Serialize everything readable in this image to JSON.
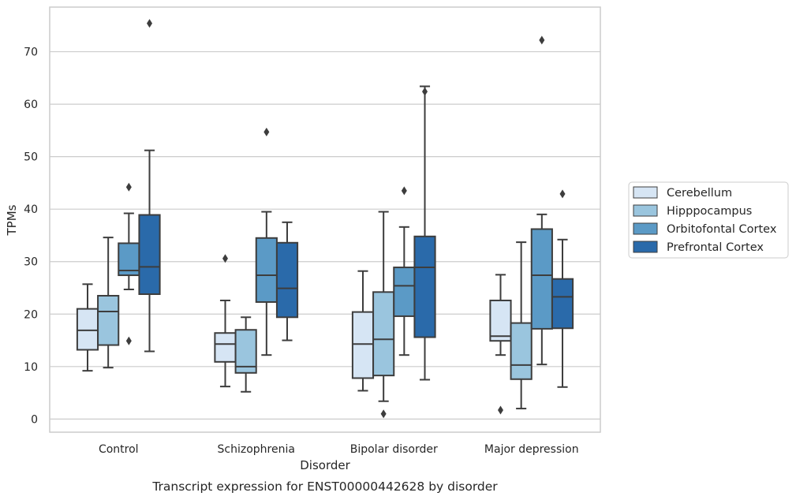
{
  "chart_data": {
    "type": "box",
    "caption": "Transcript expression for ENST00000442628 by disorder",
    "xlabel": "Disorder",
    "ylabel": "TPMs",
    "ylim": [
      -2.5,
      78.5
    ],
    "yticks": [
      0,
      10,
      20,
      30,
      40,
      50,
      60,
      70
    ],
    "grid": "horizontal",
    "legend_position": "right",
    "categories": [
      "Control",
      "Schizophrenia",
      "Bipolar disorder",
      "Major depression"
    ],
    "series": [
      {
        "name": "Cerebellum",
        "color": "#d6e5f4",
        "boxes": [
          {
            "whisker_low": 9.2,
            "q1": 13.2,
            "median": 16.9,
            "q3": 21.0,
            "whisker_high": 25.7,
            "outliers": []
          },
          {
            "whisker_low": 6.2,
            "q1": 10.9,
            "median": 14.3,
            "q3": 16.4,
            "whisker_high": 22.6,
            "outliers": [
              30.6
            ]
          },
          {
            "whisker_low": 5.4,
            "q1": 7.8,
            "median": 14.3,
            "q3": 20.4,
            "whisker_high": 28.2,
            "outliers": []
          },
          {
            "whisker_low": 12.2,
            "q1": 14.9,
            "median": 15.8,
            "q3": 22.6,
            "whisker_high": 27.5,
            "outliers": [
              1.7
            ]
          }
        ]
      },
      {
        "name": "Hipppocampus",
        "color": "#9ac5de",
        "boxes": [
          {
            "whisker_low": 9.8,
            "q1": 14.1,
            "median": 20.5,
            "q3": 23.5,
            "whisker_high": 34.6,
            "outliers": []
          },
          {
            "whisker_low": 5.2,
            "q1": 8.8,
            "median": 10.0,
            "q3": 17.0,
            "whisker_high": 19.4,
            "outliers": []
          },
          {
            "whisker_low": 3.4,
            "q1": 8.3,
            "median": 15.2,
            "q3": 24.2,
            "whisker_high": 39.5,
            "outliers": [
              1.0
            ]
          },
          {
            "whisker_low": 2.0,
            "q1": 7.6,
            "median": 10.3,
            "q3": 18.3,
            "whisker_high": 33.7,
            "outliers": []
          }
        ]
      },
      {
        "name": "Orbitofontal Cortex",
        "color": "#5b9ac6",
        "boxes": [
          {
            "whisker_low": 24.7,
            "q1": 27.4,
            "median": 28.3,
            "q3": 33.5,
            "whisker_high": 39.2,
            "outliers": [
              14.9,
              44.2
            ]
          },
          {
            "whisker_low": 12.2,
            "q1": 22.3,
            "median": 27.4,
            "q3": 34.5,
            "whisker_high": 39.5,
            "outliers": [
              54.7
            ]
          },
          {
            "whisker_low": 12.2,
            "q1": 19.6,
            "median": 25.4,
            "q3": 28.9,
            "whisker_high": 36.6,
            "outliers": [
              43.5
            ]
          },
          {
            "whisker_low": 10.4,
            "q1": 17.2,
            "median": 27.4,
            "q3": 36.2,
            "whisker_high": 39.0,
            "outliers": [
              72.2
            ]
          }
        ]
      },
      {
        "name": "Prefrontal Cortex",
        "color": "#2a6aaa",
        "boxes": [
          {
            "whisker_low": 12.9,
            "q1": 23.8,
            "median": 29.0,
            "q3": 38.9,
            "whisker_high": 51.2,
            "outliers": [
              75.4
            ]
          },
          {
            "whisker_low": 15.0,
            "q1": 19.4,
            "median": 24.9,
            "q3": 33.6,
            "whisker_high": 37.5,
            "outliers": []
          },
          {
            "whisker_low": 7.5,
            "q1": 15.6,
            "median": 28.9,
            "q3": 34.8,
            "whisker_high": 63.4,
            "outliers": [
              62.4
            ]
          },
          {
            "whisker_low": 6.1,
            "q1": 17.3,
            "median": 23.3,
            "q3": 26.7,
            "whisker_high": 34.2,
            "outliers": [
              42.9
            ]
          }
        ]
      }
    ]
  }
}
